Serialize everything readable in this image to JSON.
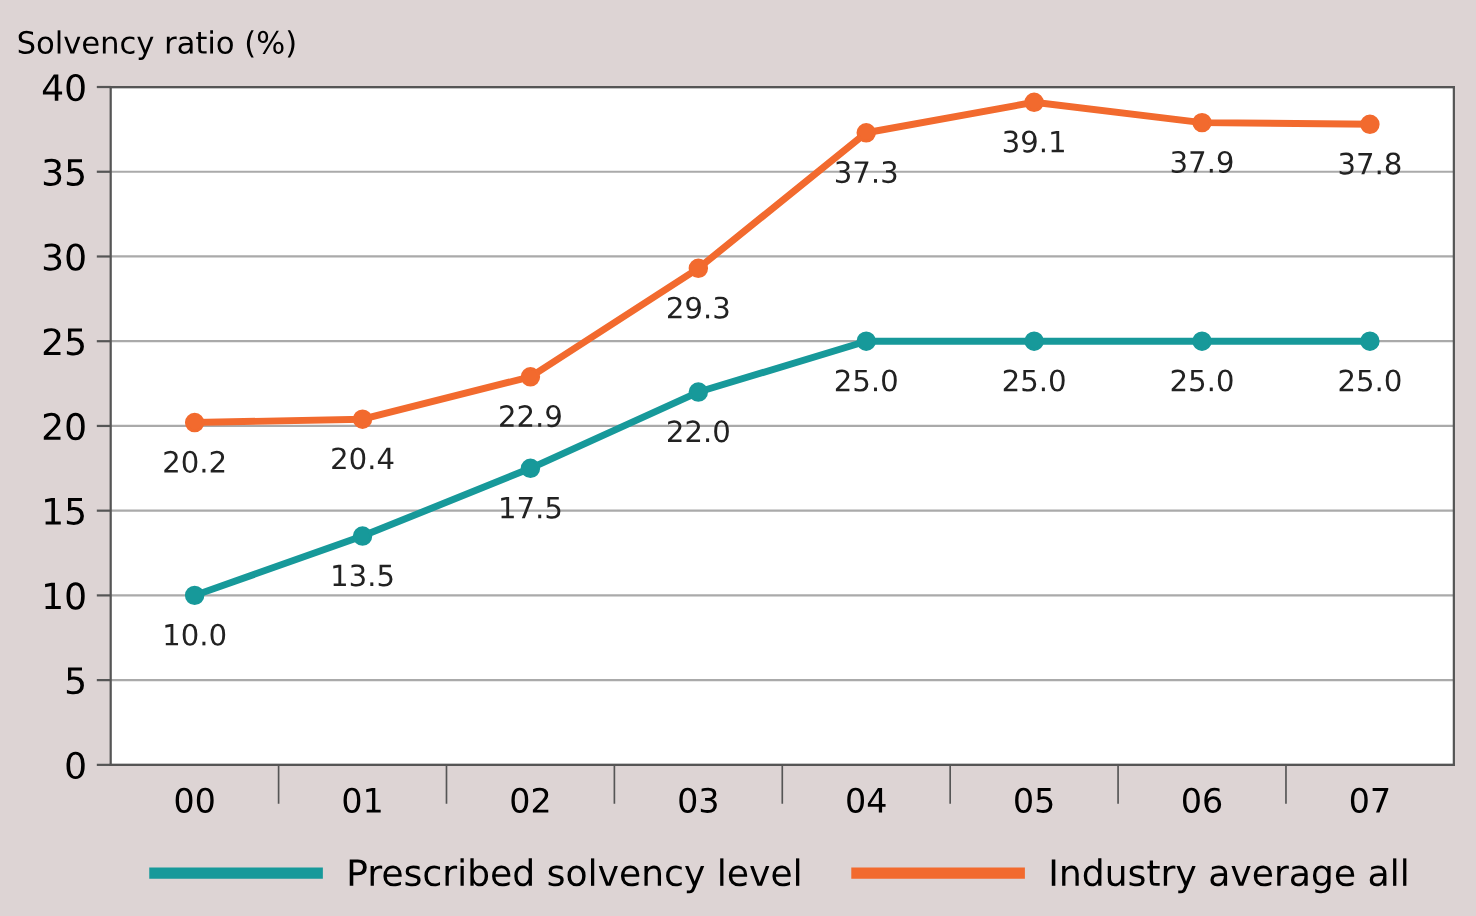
{
  "chart_data": {
    "type": "line",
    "ylabel": "Solvency ratio (%)",
    "categories": [
      "00",
      "01",
      "02",
      "03",
      "04",
      "05",
      "06",
      "07"
    ],
    "series": [
      {
        "name": "Prescribed solvency level",
        "color": "#17999a",
        "values": [
          10.0,
          13.5,
          17.5,
          22.0,
          25.0,
          25.0,
          25.0,
          25.0
        ],
        "value_labels": [
          "10.0",
          "13.5",
          "17.5",
          "22.0",
          "25.0",
          "25.0",
          "25.0",
          "25.0"
        ]
      },
      {
        "name": "Industry average all",
        "color": "#f26a2e",
        "values": [
          20.2,
          20.4,
          22.9,
          29.3,
          37.3,
          39.1,
          37.9,
          37.8
        ],
        "value_labels": [
          "20.2",
          "20.4",
          "22.9",
          "29.3",
          "37.3",
          "39.1",
          "37.9",
          "37.8"
        ]
      }
    ],
    "ylim": [
      0,
      40
    ],
    "yticks": [
      0,
      5,
      10,
      15,
      20,
      25,
      30,
      35,
      40
    ],
    "grid": "y",
    "legend": "bottom",
    "marker": "circle",
    "line_style": "solid"
  }
}
